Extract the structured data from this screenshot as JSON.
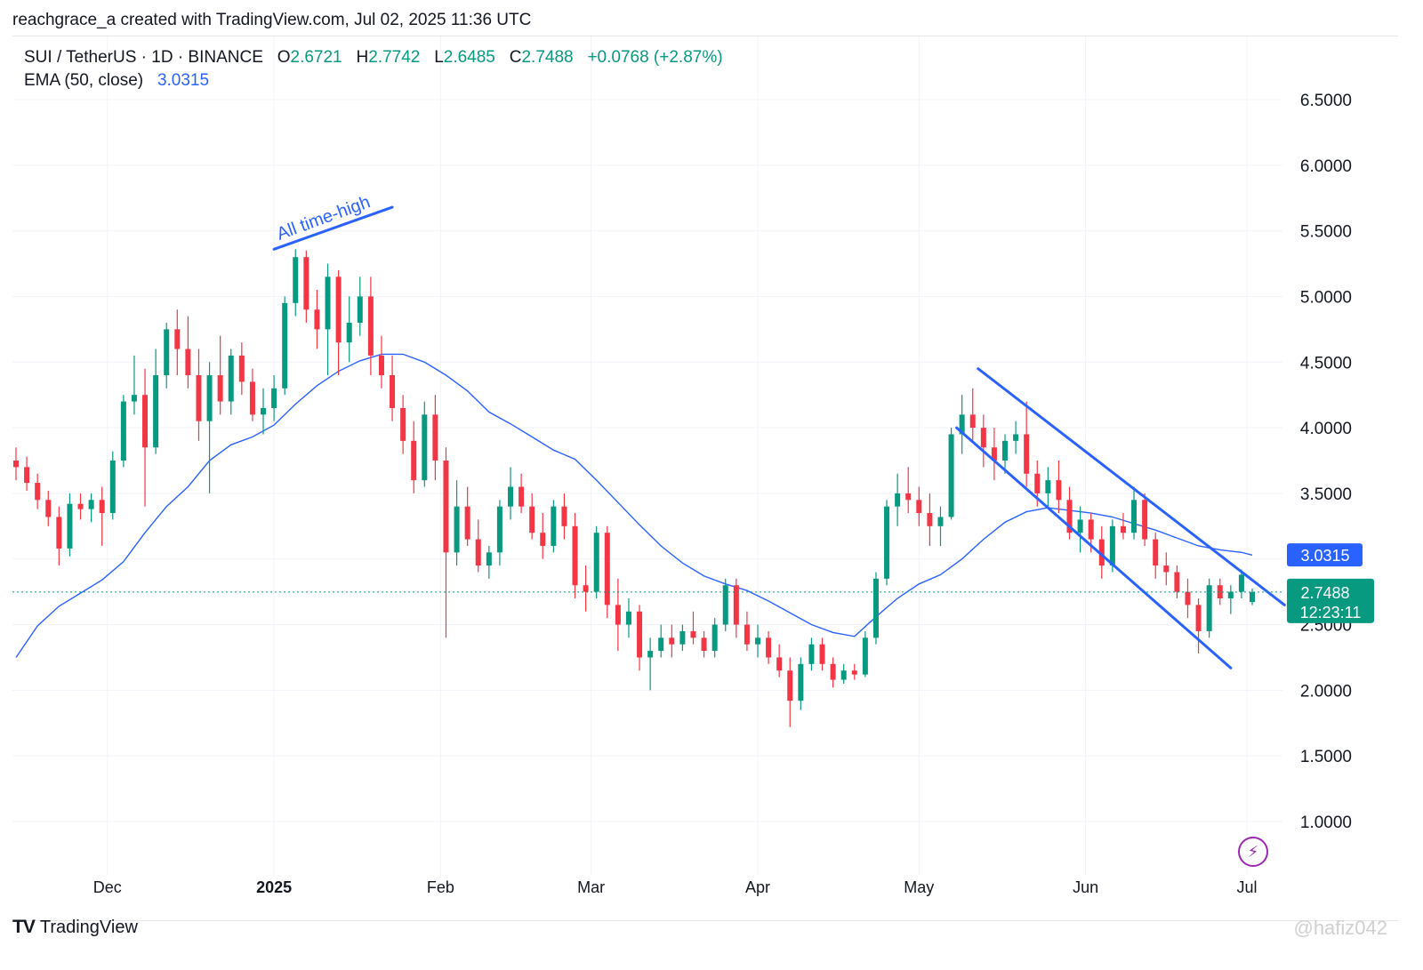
{
  "caption": "reachgrace_a created with TradingView.com, Jul 02, 2025 11:36 UTC",
  "legend": {
    "symbol": "SUI / TetherUS · 1D · BINANCE",
    "open_label": "O",
    "open": "2.6721",
    "high_label": "H",
    "high": "2.7742",
    "low_label": "L",
    "low": "2.6485",
    "close_label": "C",
    "close": "2.7488",
    "change": "+0.0768 (+2.87%)",
    "ema_label": "EMA (50, close)",
    "ema_value": "3.0315"
  },
  "brand": {
    "logo": "TV",
    "name": "TradingView"
  },
  "watermark": "@hafiz042",
  "colors": {
    "up": "#089981",
    "down": "#f23645",
    "ema": "#2962ff",
    "drawing": "#2962ff",
    "grid": "#f0f3fa"
  },
  "chart_data": {
    "type": "candlestick",
    "symbol": "SUI / TetherUS",
    "interval": "1D",
    "exchange": "BINANCE",
    "x_tick_labels": [
      "Dec",
      "2025",
      "Feb",
      "Mar",
      "Apr",
      "May",
      "Jun",
      "Jul"
    ],
    "y_tick_labels": [
      "1.0000",
      "1.5000",
      "2.0000",
      "2.5000",
      "3.0000",
      "3.5000",
      "4.0000",
      "4.5000",
      "5.0000",
      "5.5000",
      "6.0000",
      "6.5000"
    ],
    "ylim": [
      0.65,
      6.9
    ],
    "start_date": "2024-11-14",
    "end_date": "2025-07-02",
    "grid": true,
    "price_labels": {
      "ema": {
        "value": "3.0315",
        "color": "#2962ff"
      },
      "last": {
        "value": "2.7488",
        "countdown": "12:23:11",
        "color": "#089981"
      }
    },
    "annotations": [
      {
        "text": "All time-high"
      }
    ],
    "trendlines": [
      {
        "name": "all-time-high-line",
        "from": [
          "2025-01-01",
          5.36
        ],
        "to": [
          "2025-01-23",
          5.68
        ]
      },
      {
        "name": "channel-upper-line",
        "from": [
          "2025-05-12",
          4.45
        ],
        "to": [
          "2025-07-08",
          2.65
        ]
      },
      {
        "name": "channel-lower-line",
        "from": [
          "2025-05-08",
          4.0
        ],
        "to": [
          "2025-06-28",
          2.17
        ]
      }
    ],
    "ema_series": [
      [
        "2024-11-14",
        2.25
      ],
      [
        "2024-11-18",
        2.49
      ],
      [
        "2024-11-22",
        2.64
      ],
      [
        "2024-11-26",
        2.74
      ],
      [
        "2024-11-30",
        2.84
      ],
      [
        "2024-12-04",
        2.98
      ],
      [
        "2024-12-08",
        3.2
      ],
      [
        "2024-12-12",
        3.4
      ],
      [
        "2024-12-16",
        3.55
      ],
      [
        "2024-12-20",
        3.75
      ],
      [
        "2024-12-24",
        3.87
      ],
      [
        "2024-12-28",
        3.93
      ],
      [
        "2025-01-01",
        4.02
      ],
      [
        "2025-01-05",
        4.18
      ],
      [
        "2025-01-09",
        4.32
      ],
      [
        "2025-01-13",
        4.43
      ],
      [
        "2025-01-17",
        4.51
      ],
      [
        "2025-01-21",
        4.56
      ],
      [
        "2025-01-25",
        4.56
      ],
      [
        "2025-01-29",
        4.5
      ],
      [
        "2025-02-02",
        4.4
      ],
      [
        "2025-02-06",
        4.28
      ],
      [
        "2025-02-10",
        4.12
      ],
      [
        "2025-02-14",
        4.03
      ],
      [
        "2025-02-18",
        3.93
      ],
      [
        "2025-02-22",
        3.83
      ],
      [
        "2025-02-26",
        3.76
      ],
      [
        "2025-03-02",
        3.6
      ],
      [
        "2025-03-06",
        3.43
      ],
      [
        "2025-03-10",
        3.26
      ],
      [
        "2025-03-14",
        3.1
      ],
      [
        "2025-03-18",
        2.97
      ],
      [
        "2025-03-22",
        2.87
      ],
      [
        "2025-03-26",
        2.81
      ],
      [
        "2025-03-30",
        2.76
      ],
      [
        "2025-04-03",
        2.68
      ],
      [
        "2025-04-07",
        2.59
      ],
      [
        "2025-04-11",
        2.5
      ],
      [
        "2025-04-15",
        2.44
      ],
      [
        "2025-04-19",
        2.41
      ],
      [
        "2025-04-23",
        2.56
      ],
      [
        "2025-04-27",
        2.7
      ],
      [
        "2025-05-01",
        2.81
      ],
      [
        "2025-05-05",
        2.88
      ],
      [
        "2025-05-09",
        3.0
      ],
      [
        "2025-05-13",
        3.15
      ],
      [
        "2025-05-17",
        3.28
      ],
      [
        "2025-05-21",
        3.36
      ],
      [
        "2025-05-25",
        3.39
      ],
      [
        "2025-05-29",
        3.37
      ],
      [
        "2025-06-02",
        3.35
      ],
      [
        "2025-06-06",
        3.32
      ],
      [
        "2025-06-10",
        3.27
      ],
      [
        "2025-06-14",
        3.22
      ],
      [
        "2025-06-18",
        3.16
      ],
      [
        "2025-06-22",
        3.1
      ],
      [
        "2025-06-26",
        3.07
      ],
      [
        "2025-06-30",
        3.05
      ],
      [
        "2025-07-02",
        3.03
      ]
    ],
    "candles": [
      [
        "2024-11-14",
        3.75,
        3.85,
        3.6,
        3.7
      ],
      [
        "2024-11-16",
        3.7,
        3.78,
        3.52,
        3.58
      ],
      [
        "2024-11-18",
        3.58,
        3.65,
        3.38,
        3.45
      ],
      [
        "2024-11-20",
        3.45,
        3.52,
        3.25,
        3.32
      ],
      [
        "2024-11-22",
        3.32,
        3.4,
        2.95,
        3.08
      ],
      [
        "2024-11-24",
        3.08,
        3.5,
        3.02,
        3.42
      ],
      [
        "2024-11-26",
        3.42,
        3.5,
        3.3,
        3.38
      ],
      [
        "2024-11-28",
        3.38,
        3.5,
        3.28,
        3.45
      ],
      [
        "2024-11-30",
        3.45,
        3.55,
        3.1,
        3.35
      ],
      [
        "2024-12-02",
        3.35,
        3.82,
        3.3,
        3.75
      ],
      [
        "2024-12-04",
        3.75,
        4.25,
        3.7,
        4.2
      ],
      [
        "2024-12-06",
        4.2,
        4.55,
        4.1,
        4.25
      ],
      [
        "2024-12-08",
        4.25,
        4.45,
        3.4,
        3.85
      ],
      [
        "2024-12-10",
        3.85,
        4.6,
        3.8,
        4.4
      ],
      [
        "2024-12-12",
        4.4,
        4.8,
        4.3,
        4.75
      ],
      [
        "2024-12-14",
        4.75,
        4.9,
        4.4,
        4.6
      ],
      [
        "2024-12-16",
        4.6,
        4.85,
        4.3,
        4.4
      ],
      [
        "2024-12-18",
        4.4,
        4.6,
        3.9,
        4.05
      ],
      [
        "2024-12-20",
        4.05,
        4.5,
        3.5,
        4.4
      ],
      [
        "2024-12-22",
        4.4,
        4.7,
        4.1,
        4.2
      ],
      [
        "2024-12-24",
        4.2,
        4.6,
        4.1,
        4.55
      ],
      [
        "2024-12-26",
        4.55,
        4.65,
        4.25,
        4.35
      ],
      [
        "2024-12-28",
        4.35,
        4.45,
        4.05,
        4.1
      ],
      [
        "2024-12-30",
        4.1,
        4.3,
        3.95,
        4.15
      ],
      [
        "2025-01-01",
        4.15,
        4.4,
        4.05,
        4.3
      ],
      [
        "2025-01-03",
        4.3,
        5.0,
        4.25,
        4.95
      ],
      [
        "2025-01-05",
        4.95,
        5.36,
        4.85,
        5.3
      ],
      [
        "2025-01-07",
        5.3,
        5.35,
        4.8,
        4.9
      ],
      [
        "2025-01-09",
        4.9,
        5.05,
        4.6,
        4.75
      ],
      [
        "2025-01-11",
        4.75,
        5.25,
        4.4,
        5.15
      ],
      [
        "2025-01-13",
        5.15,
        5.2,
        4.4,
        4.65
      ],
      [
        "2025-01-15",
        4.65,
        5.0,
        4.5,
        4.8
      ],
      [
        "2025-01-17",
        4.8,
        5.15,
        4.7,
        5.0
      ],
      [
        "2025-01-19",
        5.0,
        5.15,
        4.4,
        4.55
      ],
      [
        "2025-01-21",
        4.55,
        4.7,
        4.3,
        4.4
      ],
      [
        "2025-01-23",
        4.4,
        4.55,
        4.05,
        4.15
      ],
      [
        "2025-01-25",
        4.15,
        4.25,
        3.8,
        3.9
      ],
      [
        "2025-01-27",
        3.9,
        4.05,
        3.5,
        3.6
      ],
      [
        "2025-01-29",
        3.6,
        4.2,
        3.55,
        4.1
      ],
      [
        "2025-01-31",
        4.1,
        4.25,
        3.6,
        3.75
      ],
      [
        "2025-02-02",
        3.75,
        3.85,
        2.4,
        3.05
      ],
      [
        "2025-02-04",
        3.05,
        3.6,
        2.95,
        3.4
      ],
      [
        "2025-02-06",
        3.4,
        3.55,
        3.1,
        3.15
      ],
      [
        "2025-02-08",
        3.15,
        3.3,
        2.9,
        2.95
      ],
      [
        "2025-02-10",
        2.95,
        3.1,
        2.85,
        3.05
      ],
      [
        "2025-02-12",
        3.05,
        3.45,
        2.95,
        3.4
      ],
      [
        "2025-02-14",
        3.4,
        3.7,
        3.3,
        3.55
      ],
      [
        "2025-02-16",
        3.55,
        3.65,
        3.35,
        3.4
      ],
      [
        "2025-02-18",
        3.4,
        3.5,
        3.15,
        3.2
      ],
      [
        "2025-02-20",
        3.2,
        3.35,
        3.0,
        3.1
      ],
      [
        "2025-02-22",
        3.1,
        3.45,
        3.05,
        3.4
      ],
      [
        "2025-02-24",
        3.4,
        3.5,
        3.15,
        3.25
      ],
      [
        "2025-02-26",
        3.25,
        3.35,
        2.7,
        2.8
      ],
      [
        "2025-02-28",
        2.8,
        2.95,
        2.6,
        2.75
      ],
      [
        "2025-03-02",
        2.75,
        3.25,
        2.7,
        3.2
      ],
      [
        "2025-03-04",
        3.2,
        3.25,
        2.55,
        2.65
      ],
      [
        "2025-03-06",
        2.65,
        2.85,
        2.3,
        2.5
      ],
      [
        "2025-03-08",
        2.5,
        2.7,
        2.4,
        2.6
      ],
      [
        "2025-03-10",
        2.6,
        2.65,
        2.15,
        2.25
      ],
      [
        "2025-03-12",
        2.25,
        2.4,
        2.0,
        2.3
      ],
      [
        "2025-03-14",
        2.3,
        2.5,
        2.25,
        2.4
      ],
      [
        "2025-03-16",
        2.4,
        2.5,
        2.25,
        2.35
      ],
      [
        "2025-03-18",
        2.35,
        2.5,
        2.3,
        2.45
      ],
      [
        "2025-03-20",
        2.45,
        2.6,
        2.35,
        2.4
      ],
      [
        "2025-03-22",
        2.4,
        2.45,
        2.25,
        2.3
      ],
      [
        "2025-03-24",
        2.3,
        2.55,
        2.25,
        2.5
      ],
      [
        "2025-03-26",
        2.5,
        2.85,
        2.45,
        2.8
      ],
      [
        "2025-03-28",
        2.8,
        2.85,
        2.4,
        2.5
      ],
      [
        "2025-03-30",
        2.5,
        2.6,
        2.3,
        2.35
      ],
      [
        "2025-04-01",
        2.35,
        2.5,
        2.25,
        2.4
      ],
      [
        "2025-04-03",
        2.4,
        2.45,
        2.2,
        2.25
      ],
      [
        "2025-04-05",
        2.25,
        2.35,
        2.1,
        2.15
      ],
      [
        "2025-04-07",
        2.15,
        2.25,
        1.72,
        1.92
      ],
      [
        "2025-04-09",
        1.92,
        2.25,
        1.85,
        2.2
      ],
      [
        "2025-04-11",
        2.2,
        2.4,
        2.15,
        2.35
      ],
      [
        "2025-04-13",
        2.35,
        2.4,
        2.15,
        2.2
      ],
      [
        "2025-04-15",
        2.2,
        2.25,
        2.02,
        2.08
      ],
      [
        "2025-04-17",
        2.08,
        2.2,
        2.05,
        2.15
      ],
      [
        "2025-04-19",
        2.15,
        2.2,
        2.08,
        2.12
      ],
      [
        "2025-04-21",
        2.12,
        2.45,
        2.1,
        2.4
      ],
      [
        "2025-04-23",
        2.4,
        2.9,
        2.35,
        2.85
      ],
      [
        "2025-04-25",
        2.85,
        3.45,
        2.8,
        3.4
      ],
      [
        "2025-04-27",
        3.4,
        3.65,
        3.25,
        3.5
      ],
      [
        "2025-04-29",
        3.5,
        3.7,
        3.35,
        3.45
      ],
      [
        "2025-05-01",
        3.45,
        3.55,
        3.25,
        3.35
      ],
      [
        "2025-05-03",
        3.35,
        3.5,
        3.1,
        3.25
      ],
      [
        "2025-05-05",
        3.25,
        3.4,
        3.1,
        3.32
      ],
      [
        "2025-05-07",
        3.32,
        4.0,
        3.3,
        3.95
      ],
      [
        "2025-05-09",
        3.95,
        4.25,
        3.8,
        4.1
      ],
      [
        "2025-05-11",
        4.1,
        4.3,
        3.9,
        4.0
      ],
      [
        "2025-05-13",
        4.0,
        4.1,
        3.7,
        3.85
      ],
      [
        "2025-05-15",
        3.85,
        4.0,
        3.6,
        3.75
      ],
      [
        "2025-05-17",
        3.75,
        3.95,
        3.65,
        3.9
      ],
      [
        "2025-05-19",
        3.9,
        4.05,
        3.8,
        3.95
      ],
      [
        "2025-05-21",
        3.95,
        4.2,
        3.55,
        3.65
      ],
      [
        "2025-05-23",
        3.65,
        3.75,
        3.4,
        3.5
      ],
      [
        "2025-05-25",
        3.5,
        3.7,
        3.4,
        3.6
      ],
      [
        "2025-05-27",
        3.6,
        3.75,
        3.35,
        3.45
      ],
      [
        "2025-05-29",
        3.45,
        3.55,
        3.15,
        3.2
      ],
      [
        "2025-05-31",
        3.2,
        3.4,
        3.05,
        3.3
      ],
      [
        "2025-06-02",
        3.3,
        3.35,
        3.05,
        3.15
      ],
      [
        "2025-06-04",
        3.15,
        3.25,
        2.85,
        2.95
      ],
      [
        "2025-06-06",
        2.95,
        3.3,
        2.9,
        3.25
      ],
      [
        "2025-06-08",
        3.25,
        3.35,
        3.15,
        3.2
      ],
      [
        "2025-06-10",
        3.2,
        3.55,
        3.15,
        3.45
      ],
      [
        "2025-06-12",
        3.45,
        3.5,
        3.1,
        3.15
      ],
      [
        "2025-06-14",
        3.15,
        3.2,
        2.85,
        2.95
      ],
      [
        "2025-06-16",
        2.95,
        3.05,
        2.8,
        2.9
      ],
      [
        "2025-06-18",
        2.9,
        2.95,
        2.7,
        2.75
      ],
      [
        "2025-06-20",
        2.75,
        2.85,
        2.55,
        2.65
      ],
      [
        "2025-06-22",
        2.65,
        2.7,
        2.28,
        2.45
      ],
      [
        "2025-06-24",
        2.45,
        2.85,
        2.4,
        2.8
      ],
      [
        "2025-06-26",
        2.8,
        2.85,
        2.65,
        2.7
      ],
      [
        "2025-06-28",
        2.7,
        2.8,
        2.58,
        2.75
      ],
      [
        "2025-06-30",
        2.75,
        2.92,
        2.7,
        2.88
      ],
      [
        "2025-07-02",
        2.6721,
        2.7742,
        2.6485,
        2.7488
      ]
    ]
  }
}
